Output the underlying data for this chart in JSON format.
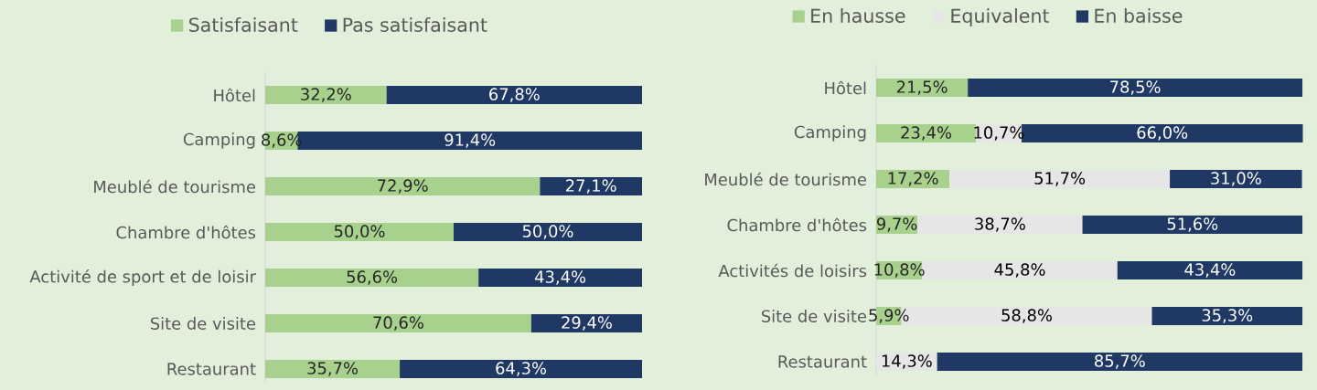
{
  "chart_data": [
    {
      "type": "bar",
      "orientation": "horizontal",
      "stacked": true,
      "legend": "top",
      "xlim": [
        0,
        100
      ],
      "categories": [
        "Hôtel",
        "Camping",
        "Meublé de tourisme",
        "Chambre d'hôtes",
        "Activité de sport et de loisir",
        "Site de visite",
        "Restaurant"
      ],
      "series": [
        {
          "name": "Satisfaisant",
          "color": "#a9d18e",
          "values": [
            32.2,
            8.6,
            72.9,
            50.0,
            56.6,
            70.6,
            35.7
          ],
          "value_labels": [
            "32,2%",
            "8,6%",
            "72,9%",
            "50,0%",
            "56,6%",
            "70,6%",
            "35,7%"
          ]
        },
        {
          "name": "Pas satisfaisant",
          "color": "#203864",
          "values": [
            67.8,
            91.4,
            27.1,
            50.0,
            43.4,
            29.4,
            64.3
          ],
          "value_labels": [
            "67,8%",
            "91,4%",
            "27,1%",
            "50,0%",
            "43,4%",
            "29,4%",
            "64,3%"
          ]
        }
      ]
    },
    {
      "type": "bar",
      "orientation": "horizontal",
      "stacked": true,
      "legend": "top",
      "xlim": [
        0,
        100
      ],
      "categories": [
        "Hôtel",
        "Camping",
        "Meublé de tourisme",
        "Chambre d'hôtes",
        "Activités de loisirs",
        "Site de visite",
        "Restaurant"
      ],
      "series": [
        {
          "name": "En hausse",
          "color": "#a9d18e",
          "values": [
            21.5,
            23.4,
            17.2,
            9.7,
            10.8,
            5.9,
            null
          ],
          "value_labels": [
            "21,5%",
            "23,4%",
            "17,2%",
            "9,7%",
            "10,8%",
            "5,9%",
            null
          ]
        },
        {
          "name": "Equivalent",
          "color": "#e7e6e6",
          "values": [
            null,
            10.7,
            51.7,
            38.7,
            45.8,
            58.8,
            14.3
          ],
          "value_labels": [
            null,
            "10,7%",
            "51,7%",
            "38,7%",
            "45,8%",
            "58,8%",
            "14,3%"
          ]
        },
        {
          "name": "En baisse",
          "color": "#203864",
          "values": [
            78.5,
            66.0,
            31.0,
            51.6,
            43.4,
            35.3,
            85.7
          ],
          "value_labels": [
            "78,5%",
            "66,0%",
            "31,0%",
            "51,6%",
            "43,4%",
            "35,3%",
            "85,7%"
          ]
        }
      ]
    }
  ]
}
